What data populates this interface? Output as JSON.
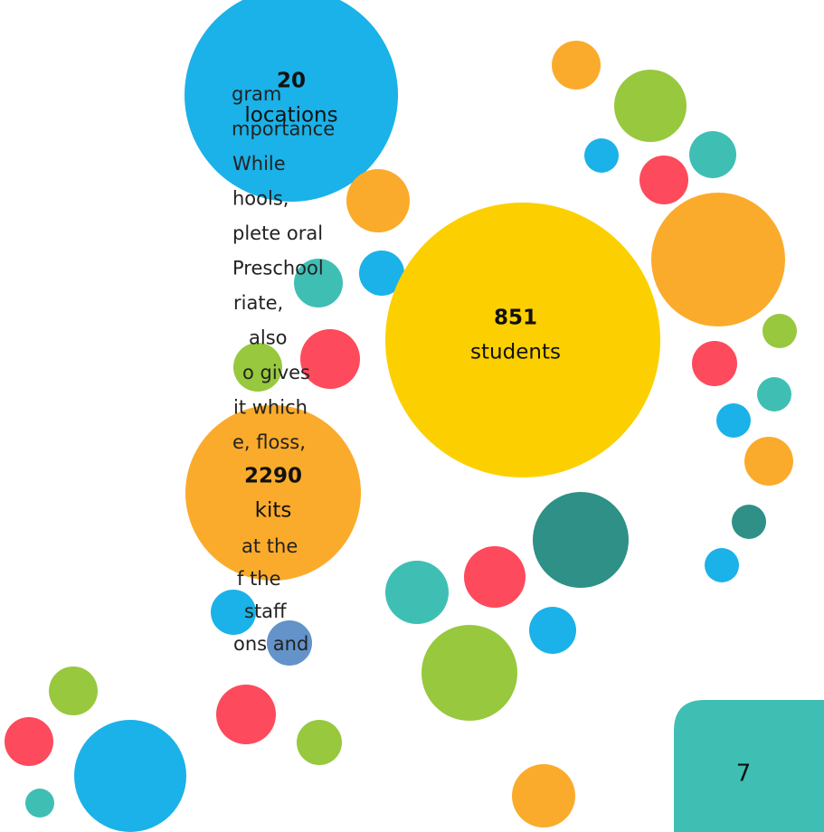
{
  "body_text": {
    "paragraph_1": [
      "gram",
      "mportance",
      "While",
      "hools,",
      "plete oral",
      "Preschool",
      "riate,",
      "also",
      "o gives",
      "it which",
      "e, floss,"
    ],
    "paragraph_2": [
      "at the",
      "f the",
      "staff",
      "ons and"
    ]
  },
  "stats": [
    {
      "number": 20,
      "label": "locations"
    },
    {
      "number": 851,
      "label": "students"
    },
    {
      "number": 2290,
      "label": "kits"
    }
  ],
  "page_number": 7
}
